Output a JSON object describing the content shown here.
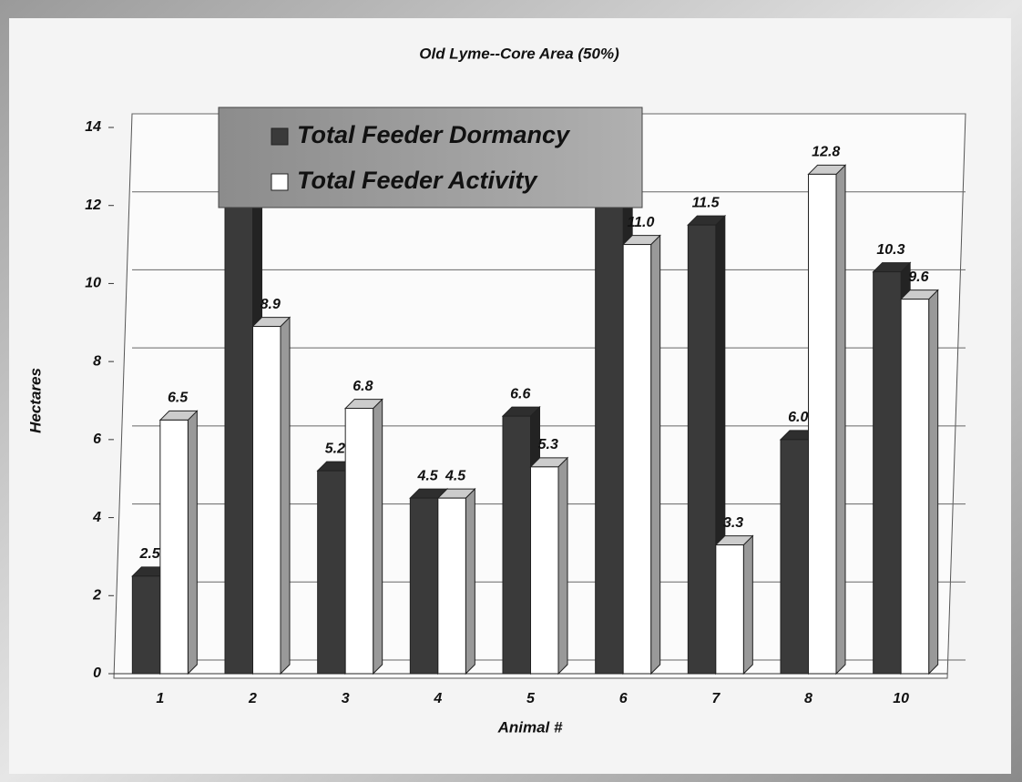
{
  "chart_data": {
    "type": "bar",
    "title": "Old Lyme--Core Area (50%)",
    "y_label": "Hectares",
    "x_label": "Animal #",
    "categories": [
      "1",
      "2",
      "3",
      "4",
      "5",
      "6",
      "7",
      "8",
      "10"
    ],
    "series": [
      {
        "name": "Total Feeder Dormancy",
        "color": "#3a3a3a",
        "values": [
          2.5,
          13.5,
          5.2,
          4.5,
          6.6,
          13.2,
          11.5,
          6.0,
          10.3
        ],
        "value_labels": [
          "2.5",
          null,
          "5.2",
          "4.5",
          "6.6",
          null,
          "11.5",
          "6.0",
          "10.3"
        ]
      },
      {
        "name": "Total Feeder Activity",
        "color": "#ffffff",
        "values": [
          6.5,
          8.9,
          6.8,
          4.5,
          5.3,
          11.0,
          3.3,
          12.8,
          9.6
        ],
        "value_labels": [
          "6.5",
          "8.9",
          "6.8",
          "4.5",
          "5.3",
          "11.0",
          "3.3",
          "12.8",
          "9.6"
        ]
      }
    ],
    "ylim": [
      0,
      14
    ],
    "yticks": [
      0,
      2,
      4,
      6,
      8,
      10,
      12,
      14
    ],
    "grid": true,
    "legend": "top-left"
  }
}
